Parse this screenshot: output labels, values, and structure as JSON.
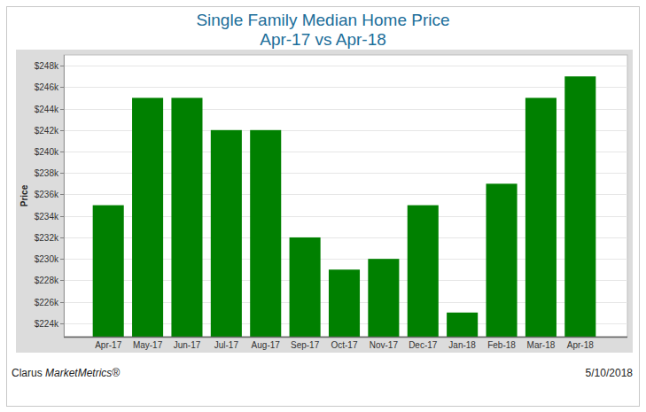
{
  "chart_data": {
    "type": "bar",
    "title": "Single Family Median Home Price",
    "subtitle": "Apr-17 vs Apr-18",
    "y_label": "Price",
    "categories": [
      "Apr-17",
      "May-17",
      "Jun-17",
      "Jul-17",
      "Aug-17",
      "Sep-17",
      "Oct-17",
      "Nov-17",
      "Dec-17",
      "Jan-18",
      "Feb-18",
      "Mar-18",
      "Apr-18"
    ],
    "values": [
      235000,
      245000,
      245000,
      242000,
      242000,
      232000,
      229000,
      230000,
      235000,
      225000,
      237000,
      245000,
      247000
    ],
    "color": "#008000",
    "ylim": [
      222750,
      249000
    ],
    "yticks": [
      {
        "value": 224000,
        "label": "$224k"
      },
      {
        "value": 226000,
        "label": "$226k"
      },
      {
        "value": 228000,
        "label": "$228k"
      },
      {
        "value": 230000,
        "label": "$230k"
      },
      {
        "value": 232000,
        "label": "$232k"
      },
      {
        "value": 234000,
        "label": "$234k"
      },
      {
        "value": 236000,
        "label": "$236k"
      },
      {
        "value": 238000,
        "label": "$238k"
      },
      {
        "value": 240000,
        "label": "$240k"
      },
      {
        "value": 242000,
        "label": "$242k"
      },
      {
        "value": 244000,
        "label": "$244k"
      },
      {
        "value": 246000,
        "label": "$246k"
      },
      {
        "value": 248000,
        "label": "$248k"
      }
    ],
    "grid": true,
    "annotations": [
      "Clarus MarketMetrics®",
      "5/10/2018"
    ]
  }
}
